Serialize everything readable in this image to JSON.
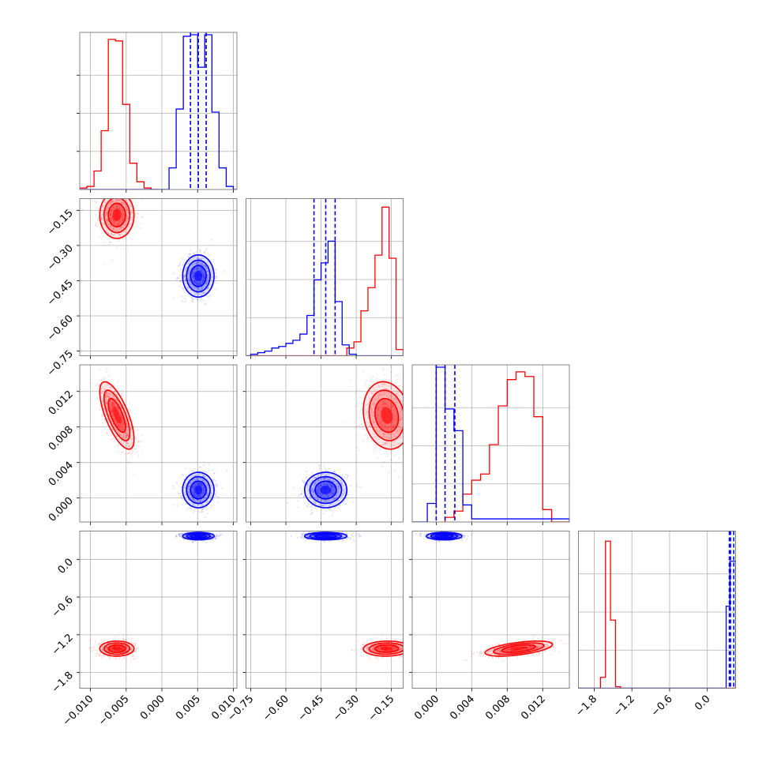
{
  "chart_data": {
    "type": "corner",
    "parameters": [
      {
        "ticks": [
          -0.01,
          -0.005,
          0.0,
          0.005,
          0.01
        ],
        "tick_labels": [
          "−0.010",
          "−0.005",
          "0.000",
          "0.005",
          "0.010"
        ],
        "range": [
          -0.0115,
          0.0105
        ]
      },
      {
        "ticks": [
          -0.75,
          -0.6,
          -0.45,
          -0.3,
          -0.15
        ],
        "tick_labels": [
          "−0.75",
          "−0.60",
          "−0.45",
          "−0.30",
          "−0.15"
        ],
        "range": [
          -0.77,
          -0.1
        ]
      },
      {
        "ticks": [
          0.0,
          0.004,
          0.008,
          0.012
        ],
        "tick_labels": [
          "0.000",
          "0.004",
          "0.008",
          "0.012"
        ],
        "range": [
          -0.0027,
          0.015
        ]
      },
      {
        "ticks": [
          -1.8,
          -1.2,
          -0.6,
          0.0
        ],
        "tick_labels": [
          "−1.8",
          "−1.2",
          "−0.6",
          "0.0"
        ],
        "range": [
          -2.05,
          0.45
        ]
      }
    ],
    "series": [
      {
        "color": "#ff0000",
        "means": [
          -0.0063,
          -0.17,
          0.0093,
          -1.42
        ],
        "sds": [
          0.0012,
          0.05,
          0.0019,
          0.06
        ],
        "correlations": {
          "0-1": 0.0,
          "0-2": -0.7,
          "0-3": 0.0,
          "1-2": -0.15,
          "1-3": 0.05,
          "2-3": 0.55
        },
        "histograms": [
          {
            "edges": [
              -0.0115,
              -0.0105,
              -0.0095,
              -0.0085,
              -0.0075,
              -0.0065,
              -0.0055,
              -0.0045,
              -0.0035,
              -0.0025,
              -0.0015,
              -0.0005
            ],
            "counts": [
              0.01,
              0.02,
              0.12,
              0.38,
              0.97,
              0.96,
              0.55,
              0.17,
              0.05,
              0.01,
              0.0
            ]
          },
          {
            "edges": [
              -0.77,
              -0.34,
              -0.31,
              -0.28,
              -0.25,
              -0.22,
              -0.19,
              -0.16,
              -0.13,
              -0.1
            ],
            "counts": [
              0.0,
              0.05,
              0.09,
              0.29,
              0.44,
              0.65,
              0.96,
              0.63,
              0.04
            ]
          },
          {
            "edges": [
              0.001,
              0.002,
              0.003,
              0.004,
              0.005,
              0.006,
              0.007,
              0.008,
              0.009,
              0.01,
              0.011,
              0.012,
              0.013,
              0.015
            ],
            "counts": [
              0.03,
              0.07,
              0.18,
              0.27,
              0.31,
              0.5,
              0.75,
              0.92,
              0.97,
              0.94,
              0.68,
              0.08,
              0.0
            ]
          },
          {
            "edges": [
              -2.05,
              -1.7,
              -1.62,
              -1.54,
              -1.46,
              -1.38,
              -1.3,
              -1.22,
              0.45
            ],
            "counts": [
              0.0,
              0.07,
              0.95,
              0.44,
              0.01,
              0.0,
              0.0,
              0.0
            ]
          }
        ]
      },
      {
        "color": "#0000ff",
        "means": [
          0.0051,
          -0.43,
          0.0009,
          0.37
        ],
        "sds": [
          0.0011,
          0.045,
          0.001,
          0.03
        ],
        "correlations": {
          "0-1": 0.0,
          "0-2": 0.0,
          "0-3": 0.0,
          "1-2": 0.0,
          "1-3": 0.0,
          "2-3": 0.0
        },
        "histograms": [
          {
            "edges": [
              -0.0115,
              0.001,
              0.002,
              0.003,
              0.004,
              0.005,
              0.006,
              0.007,
              0.008,
              0.009,
              0.01,
              0.0105
            ],
            "counts": [
              0.0,
              0.14,
              0.52,
              0.99,
              1.0,
              0.79,
              1.0,
              0.5,
              0.14,
              0.02,
              0.0
            ]
          },
          {
            "edges": [
              -0.77,
              -0.75,
              -0.72,
              -0.69,
              -0.66,
              -0.63,
              -0.6,
              -0.57,
              -0.54,
              -0.51,
              -0.48,
              -0.45,
              -0.42,
              -0.39,
              -0.36,
              -0.33,
              -0.3,
              -0.1
            ],
            "counts": [
              0.0,
              0.01,
              0.02,
              0.03,
              0.05,
              0.06,
              0.08,
              0.1,
              0.14,
              0.26,
              0.49,
              0.6,
              0.74,
              0.35,
              0.07,
              0.01,
              0.0
            ]
          },
          {
            "edges": [
              -0.0027,
              -0.001,
              0.0,
              0.001,
              0.002,
              0.003,
              0.004,
              0.015
            ],
            "counts": [
              0.0,
              0.12,
              1.0,
              0.73,
              0.59,
              0.11,
              0.02
            ]
          },
          {
            "edges": [
              -2.05,
              0.3,
              0.36,
              0.45
            ],
            "counts": [
              0.0,
              0.53,
              0.82
            ]
          }
        ],
        "quantiles": [
          [
            0.004,
            0.0051,
            0.0062
          ],
          [
            -0.48,
            -0.43,
            -0.39
          ],
          [
            0.0,
            0.001,
            0.0021
          ],
          [
            0.35,
            0.37,
            0.42
          ]
        ]
      }
    ]
  }
}
